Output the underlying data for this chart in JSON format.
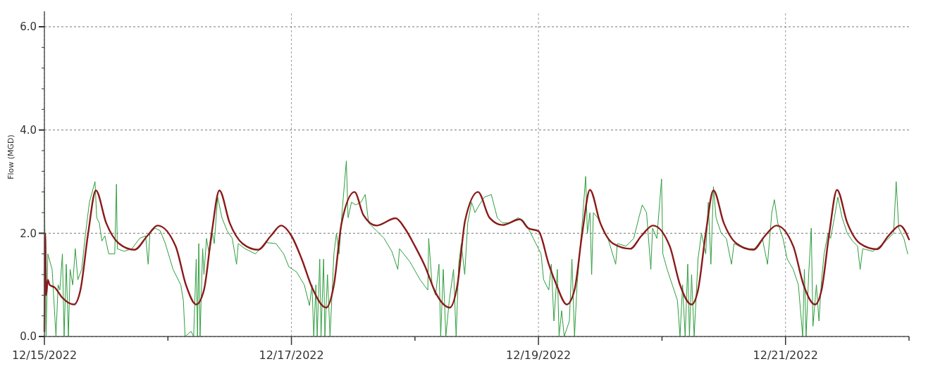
{
  "chart_data": {
    "type": "line",
    "ylabel": "Flow (MGD)",
    "grid": true,
    "xlim": [
      "2022-12-15T00:00",
      "2022-12-22T00:00"
    ],
    "xticks": [
      {
        "value": "2022-12-15T00:00",
        "label": "12/15/2022"
      },
      {
        "value": "2022-12-16T00:00",
        "label": null
      },
      {
        "value": "2022-12-17T00:00",
        "label": "12/17/2022"
      },
      {
        "value": "2022-12-18T00:00",
        "label": null
      },
      {
        "value": "2022-12-19T00:00",
        "label": "12/19/2022"
      },
      {
        "value": "2022-12-20T00:00",
        "label": null
      },
      {
        "value": "2022-12-21T00:00",
        "label": "12/21/2022"
      },
      {
        "value": "2022-12-22T00:00",
        "label": null
      }
    ],
    "ylim": [
      0,
      6.3
    ],
    "yticks": [
      {
        "value": 0,
        "label": "0.0"
      },
      {
        "value": 0.4,
        "label": null
      },
      {
        "value": 0.8,
        "label": null
      },
      {
        "value": 1.2,
        "label": null
      },
      {
        "value": 1.6,
        "label": null
      },
      {
        "value": 2,
        "label": "2.0"
      },
      {
        "value": 2.4,
        "label": null
      },
      {
        "value": 2.8,
        "label": null
      },
      {
        "value": 3.2,
        "label": null
      },
      {
        "value": 3.6,
        "label": null
      },
      {
        "value": 4,
        "label": "4.0"
      },
      {
        "value": 4.4,
        "label": null
      },
      {
        "value": 4.8,
        "label": null
      },
      {
        "value": 5.2,
        "label": null
      },
      {
        "value": 5.6,
        "label": null
      },
      {
        "value": 6,
        "label": "6.0"
      }
    ],
    "series": [
      {
        "color": "#2e9e3e",
        "x": [
          "2022-12-15T00:00",
          "2022-12-15T00:20",
          "2022-12-15T00:40",
          "2022-12-15T01:30",
          "2022-12-15T02:15",
          "2022-12-15T02:40",
          "2022-12-15T03:00",
          "2022-12-15T03:30",
          "2022-12-15T03:50",
          "2022-12-15T04:15",
          "2022-12-15T04:40",
          "2022-12-15T05:00",
          "2022-12-15T05:30",
          "2022-12-15T06:00",
          "2022-12-15T06:30",
          "2022-12-15T07:15",
          "2022-12-15T08:00",
          "2022-12-15T08:45",
          "2022-12-15T09:50",
          "2022-12-15T10:10",
          "2022-12-15T10:40",
          "2022-12-15T11:10",
          "2022-12-15T11:45",
          "2022-12-15T12:30",
          "2022-12-15T13:40",
          "2022-12-15T14:00",
          "2022-12-15T14:10",
          "2022-12-15T15:30",
          "2022-12-15T17:00",
          "2022-12-15T18:30",
          "2022-12-15T19:40",
          "2022-12-15T20:10",
          "2022-12-15T20:30",
          "2022-12-15T21:30",
          "2022-12-15T22:30",
          "2022-12-15T23:30",
          "2022-12-16T01:00",
          "2022-12-16T02:30",
          "2022-12-16T03:00",
          "2022-12-16T03:20",
          "2022-12-16T04:30",
          "2022-12-16T05:00",
          "2022-12-16T05:30",
          "2022-12-16T05:45",
          "2022-12-16T06:00",
          "2022-12-16T06:15",
          "2022-12-16T06:45",
          "2022-12-16T07:00",
          "2022-12-16T07:30",
          "2022-12-16T08:00",
          "2022-12-16T08:40",
          "2022-12-16T09:00",
          "2022-12-16T09:40",
          "2022-12-16T10:30",
          "2022-12-16T11:30",
          "2022-12-16T12:30",
          "2022-12-16T13:20",
          "2022-12-16T13:40",
          "2022-12-16T15:00",
          "2022-12-16T17:00",
          "2022-12-16T19:00",
          "2022-12-16T21:00",
          "2022-12-16T22:30",
          "2022-12-16T23:30",
          "2022-12-17T01:00",
          "2022-12-17T02:30",
          "2022-12-17T03:30",
          "2022-12-17T04:00",
          "2022-12-17T04:20",
          "2022-12-17T04:45",
          "2022-12-17T05:00",
          "2022-12-17T05:30",
          "2022-12-17T05:45",
          "2022-12-17T06:15",
          "2022-12-17T06:30",
          "2022-12-17T07:00",
          "2022-12-17T07:30",
          "2022-12-17T08:15",
          "2022-12-17T08:45",
          "2022-12-17T09:15",
          "2022-12-17T09:50",
          "2022-12-17T10:40",
          "2022-12-17T11:00",
          "2022-12-17T11:40",
          "2022-12-17T12:30",
          "2022-12-17T13:30",
          "2022-12-17T14:20",
          "2022-12-17T15:00",
          "2022-12-17T16:30",
          "2022-12-17T18:00",
          "2022-12-17T19:30",
          "2022-12-17T20:40",
          "2022-12-17T21:00",
          "2022-12-17T23:00",
          "2022-12-18T01:00",
          "2022-12-18T02:30",
          "2022-12-18T02:40",
          "2022-12-18T03:20",
          "2022-12-18T04:00",
          "2022-12-18T04:40",
          "2022-12-18T05:00",
          "2022-12-18T05:30",
          "2022-12-18T06:00",
          "2022-12-18T06:40",
          "2022-12-18T07:30",
          "2022-12-18T08:00",
          "2022-12-18T08:30",
          "2022-12-18T09:00",
          "2022-12-18T09:40",
          "2022-12-18T10:15",
          "2022-12-18T11:00",
          "2022-12-18T11:40",
          "2022-12-18T12:30",
          "2022-12-18T13:30",
          "2022-12-18T14:50",
          "2022-12-18T16:00",
          "2022-12-18T17:00",
          "2022-12-18T18:30",
          "2022-12-18T20:00",
          "2022-12-18T21:00",
          "2022-12-18T22:00",
          "2022-12-18T23:00",
          "2022-12-19T00:30",
          "2022-12-19T01:00",
          "2022-12-19T02:00",
          "2022-12-19T02:30",
          "2022-12-19T03:00",
          "2022-12-19T03:40",
          "2022-12-19T04:00",
          "2022-12-19T04:30",
          "2022-12-19T05:00",
          "2022-12-19T06:00",
          "2022-12-19T06:30",
          "2022-12-19T07:00",
          "2022-12-19T07:30",
          "2022-12-19T08:00",
          "2022-12-19T08:30",
          "2022-12-19T09:10",
          "2022-12-19T09:30",
          "2022-12-19T10:00",
          "2022-12-19T10:20",
          "2022-12-19T10:40",
          "2022-12-19T11:30",
          "2022-12-19T12:30",
          "2022-12-19T13:30",
          "2022-12-19T15:00",
          "2022-12-19T15:20",
          "2022-12-19T17:00",
          "2022-12-19T18:30",
          "2022-12-19T19:30",
          "2022-12-19T20:10",
          "2022-12-19T21:00",
          "2022-12-19T21:50",
          "2022-12-19T22:10",
          "2022-12-19T23:00",
          "2022-12-19T23:55",
          "2022-12-20T00:10",
          "2022-12-20T01:00",
          "2022-12-20T02:00",
          "2022-12-20T03:00",
          "2022-12-20T03:30",
          "2022-12-20T04:00",
          "2022-12-20T04:30",
          "2022-12-20T05:00",
          "2022-12-20T05:20",
          "2022-12-20T05:45",
          "2022-12-20T06:15",
          "2022-12-20T07:00",
          "2022-12-20T07:40",
          "2022-12-20T08:30",
          "2022-12-20T09:00",
          "2022-12-20T09:30",
          "2022-12-20T10:00",
          "2022-12-20T10:30",
          "2022-12-20T11:30",
          "2022-12-20T12:30",
          "2022-12-20T13:30",
          "2022-12-20T14:00",
          "2022-12-20T16:00",
          "2022-12-20T18:00",
          "2022-12-20T19:30",
          "2022-12-20T20:30",
          "2022-12-20T21:20",
          "2022-12-20T21:50",
          "2022-12-20T22:30",
          "2022-12-20T23:30",
          "2022-12-21T00:20",
          "2022-12-21T01:30",
          "2022-12-21T02:30",
          "2022-12-21T03:20",
          "2022-12-21T03:40",
          "2022-12-21T04:00",
          "2022-12-21T04:30",
          "2022-12-21T05:00",
          "2022-12-21T05:20",
          "2022-12-21T06:00",
          "2022-12-21T06:30",
          "2022-12-21T07:00",
          "2022-12-21T07:30",
          "2022-12-21T08:15",
          "2022-12-21T08:45",
          "2022-12-21T09:30",
          "2022-12-21T10:10",
          "2022-12-21T11:00",
          "2022-12-21T12:00",
          "2022-12-21T13:00",
          "2022-12-21T14:00",
          "2022-12-21T14:30",
          "2022-12-21T15:00",
          "2022-12-21T17:00",
          "2022-12-21T19:00",
          "2022-12-21T21:00",
          "2022-12-21T21:30",
          "2022-12-21T22:00",
          "2022-12-21T23:00",
          "2022-12-21T23:45"
        ],
        "values": [
          2.9,
          0,
          1.6,
          1.3,
          0,
          1,
          0.9,
          1.6,
          0,
          1.4,
          0,
          1.3,
          1,
          1.7,
          1.1,
          1.3,
          2,
          2.6,
          3,
          2.3,
          2.2,
          1.85,
          1.95,
          1.6,
          1.6,
          2.95,
          1.7,
          1.65,
          1.7,
          1.9,
          1.95,
          1.4,
          2,
          2.1,
          2.05,
          1.8,
          1.3,
          1,
          0.7,
          0,
          0.1,
          0,
          1.5,
          0,
          1.8,
          0,
          1.7,
          1.2,
          1.9,
          1.6,
          2,
          1.8,
          2.7,
          2.3,
          2.05,
          1.9,
          1.4,
          1.8,
          1.7,
          1.6,
          1.82,
          1.8,
          1.6,
          1.35,
          1.25,
          1,
          0.6,
          1,
          0,
          1,
          0,
          1.5,
          0,
          1.5,
          0,
          1.2,
          0,
          1.6,
          2,
          1.6,
          2.4,
          3.4,
          2.3,
          2.6,
          2.55,
          2.6,
          2.75,
          2.2,
          2.05,
          1.9,
          1.65,
          1.3,
          1.7,
          1.45,
          1.1,
          0.9,
          1.9,
          1,
          0.8,
          1.4,
          0,
          1.3,
          0,
          0.7,
          1.3,
          0,
          1.4,
          1.8,
          1.2,
          2.2,
          2.6,
          2.4,
          2.55,
          2.7,
          2.75,
          2.3,
          2.2,
          2.2,
          2.3,
          2.25,
          2.1,
          1.9,
          1.6,
          1.1,
          0.9,
          1.4,
          0.3,
          1.3,
          0,
          0.5,
          0,
          0.3,
          1.5,
          0,
          1,
          1.6,
          2.2,
          3.1,
          2,
          2.4,
          1.2,
          2.4,
          2.3,
          2.1,
          1.9,
          1.4,
          1.8,
          1.75,
          1.9,
          2.3,
          2.55,
          2.4,
          1.3,
          2.1,
          1.9,
          3.05,
          1.6,
          1.3,
          1,
          0.7,
          0,
          1,
          0,
          1.4,
          0,
          1.2,
          0,
          1.5,
          2,
          1.6,
          2.6,
          1.4,
          2.9,
          2.3,
          2,
          1.9,
          1.4,
          1.8,
          1.7,
          1.7,
          1.9,
          1.4,
          2.4,
          2.65,
          2.2,
          1.9,
          1.5,
          1.3,
          1,
          0,
          1.3,
          0,
          1.2,
          2.1,
          0.2,
          1,
          0.3,
          1.1,
          1.6,
          2,
          1.9,
          2.3,
          2.7,
          2.3,
          2,
          1.85,
          1.75,
          1.3,
          1.7,
          1.65,
          1.8,
          2,
          3,
          2.1,
          1.9,
          1.6
        ]
      },
      {
        "color": "#8b1a1a",
        "x": [
          "2022-12-15T00:00",
          "2022-12-15T00:10",
          "2022-12-15T00:20",
          "2022-12-15T00:40",
          "2022-12-15T01:00",
          "2022-12-15T02:00",
          "2022-12-15T03:30",
          "2022-12-15T05:45",
          "2022-12-15T07:00",
          "2022-12-15T08:30",
          "2022-12-15T10:00",
          "2022-12-15T12:00",
          "2022-12-15T14:30",
          "2022-12-15T17:30",
          "2022-12-15T20:00",
          "2022-12-15T22:00",
          "2022-12-16T01:30",
          "2022-12-16T03:30",
          "2022-12-16T05:30",
          "2022-12-16T07:00",
          "2022-12-16T08:30",
          "2022-12-16T10:00",
          "2022-12-16T12:00",
          "2022-12-16T14:30",
          "2022-12-16T17:30",
          "2022-12-16T20:00",
          "2022-12-16T22:00",
          "2022-12-17T00:00",
          "2022-12-17T02:00",
          "2022-12-17T04:00",
          "2022-12-17T06:45",
          "2022-12-17T08:15",
          "2022-12-17T09:45",
          "2022-12-17T12:15",
          "2022-12-17T14:00",
          "2022-12-17T16:30",
          "2022-12-17T20:15",
          "2022-12-17T22:00",
          "2022-12-18T00:00",
          "2022-12-18T02:00",
          "2022-12-18T04:00",
          "2022-12-18T06:45",
          "2022-12-18T08:15",
          "2022-12-18T09:45",
          "2022-12-18T12:15",
          "2022-12-18T14:30",
          "2022-12-18T17:00",
          "2022-12-18T20:24",
          "2022-12-18T22:00",
          "2022-12-19T00:00",
          "2022-12-19T02:00",
          "2022-12-19T03:30",
          "2022-12-19T05:30",
          "2022-12-19T07:00",
          "2022-12-19T08:30",
          "2022-12-19T10:00",
          "2022-12-19T12:00",
          "2022-12-19T14:30",
          "2022-12-19T17:50",
          "2022-12-19T20:00",
          "2022-12-19T22:15",
          "2022-12-20T01:30",
          "2022-12-20T03:30",
          "2022-12-20T05:45",
          "2022-12-20T07:00",
          "2022-12-20T08:30",
          "2022-12-20T10:00",
          "2022-12-20T12:00",
          "2022-12-20T14:30",
          "2022-12-20T17:45",
          "2022-12-20T20:00",
          "2022-12-20T22:15",
          "2022-12-21T01:30",
          "2022-12-21T03:30",
          "2022-12-21T05:45",
          "2022-12-21T07:00",
          "2022-12-21T08:30",
          "2022-12-21T10:00",
          "2022-12-21T12:00",
          "2022-12-21T14:30",
          "2022-12-21T17:45",
          "2022-12-21T20:00",
          "2022-12-21T22:15",
          "2022-12-22T00:00"
        ],
        "values": [
          0.1,
          2,
          0.8,
          1.1,
          1,
          0.95,
          0.75,
          0.62,
          0.9,
          2,
          2.83,
          2.2,
          1.8,
          1.68,
          1.95,
          2.15,
          1.75,
          1,
          0.62,
          0.9,
          2,
          2.83,
          2.2,
          1.8,
          1.68,
          1.95,
          2.15,
          1.95,
          1.5,
          0.95,
          0.56,
          1,
          2.2,
          2.8,
          2.35,
          2.15,
          2.29,
          2.1,
          1.75,
          1.35,
          0.85,
          0.56,
          1,
          2.25,
          2.8,
          2.3,
          2.16,
          2.27,
          2.1,
          2.04,
          1.4,
          1,
          0.62,
          0.9,
          2,
          2.84,
          2.2,
          1.8,
          1.7,
          1.95,
          2.15,
          1.75,
          1,
          0.62,
          0.9,
          2,
          2.83,
          2.2,
          1.8,
          1.68,
          1.95,
          2.15,
          1.75,
          1,
          0.62,
          0.9,
          2,
          2.84,
          2.2,
          1.8,
          1.69,
          1.95,
          2.15,
          1.88
        ]
      }
    ]
  }
}
